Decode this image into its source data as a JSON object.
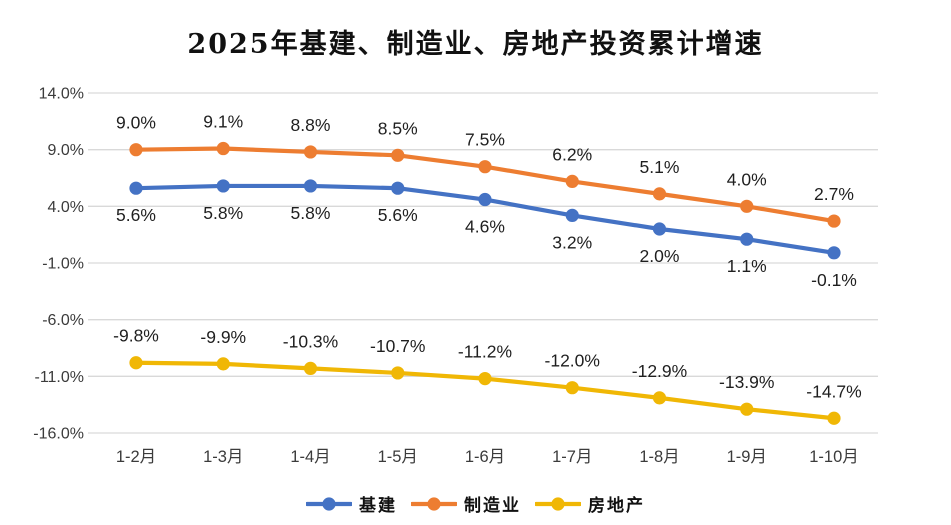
{
  "title": "2025年基建、制造业、房地产投资累计增速",
  "chart_data": {
    "type": "line",
    "categories": [
      "1-2月",
      "1-3月",
      "1-4月",
      "1-5月",
      "1-6月",
      "1-7月",
      "1-8月",
      "1-9月",
      "1-10月"
    ],
    "series": [
      {
        "name": "基建",
        "values": [
          5.6,
          5.8,
          5.8,
          5.6,
          4.6,
          3.2,
          2.0,
          1.1,
          -0.1
        ],
        "labels": [
          "5.6%",
          "5.8%",
          "5.8%",
          "5.6%",
          "4.6%",
          "3.2%",
          "2.0%",
          "1.1%",
          "-0.1%"
        ],
        "color": "#4472C4",
        "label_position": "below"
      },
      {
        "name": "制造业",
        "values": [
          9.0,
          9.1,
          8.8,
          8.5,
          7.5,
          6.2,
          5.1,
          4.0,
          2.7
        ],
        "labels": [
          "9.0%",
          "9.1%",
          "8.8%",
          "8.5%",
          "7.5%",
          "6.2%",
          "5.1%",
          "4.0%",
          "2.7%"
        ],
        "color": "#ED7D31",
        "label_position": "above"
      },
      {
        "name": "房地产",
        "values": [
          -9.8,
          -9.9,
          -10.3,
          -10.7,
          -11.2,
          -12.0,
          -12.9,
          -13.9,
          -14.7
        ],
        "labels": [
          "-9.8%",
          "-9.9%",
          "-10.3%",
          "-10.7%",
          "-11.2%",
          "-12.0%",
          "-12.9%",
          "-13.9%",
          "-14.7%"
        ],
        "color": "#F0B705",
        "label_position": "above"
      }
    ],
    "y_ticks": [
      {
        "value": 14,
        "label": "14.0%"
      },
      {
        "value": 9,
        "label": "9.0%"
      },
      {
        "value": 4,
        "label": "4.0%"
      },
      {
        "value": -1,
        "label": "-1.0%"
      },
      {
        "value": -6,
        "label": "-6.0%"
      },
      {
        "value": -11,
        "label": "-11.0%"
      },
      {
        "value": -16,
        "label": "-16.0%"
      }
    ],
    "ylim": [
      -16,
      14
    ],
    "grid": true,
    "legend_position": "bottom"
  },
  "colors": {
    "grid": "#D9D9D9",
    "axis_text": "#3b3b3b",
    "data_label_text": "#1f1f1f",
    "background": "#FFFFFF"
  }
}
